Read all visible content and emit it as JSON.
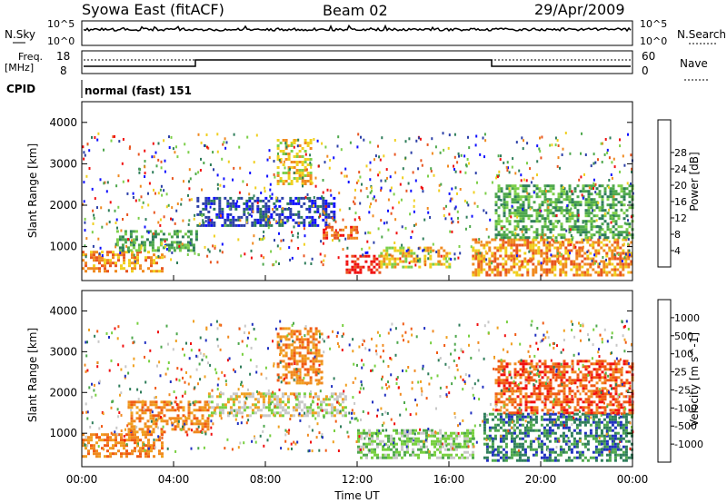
{
  "header": {
    "station": "Syowa East (fitACF)",
    "beam": "Beam 02",
    "date": "29/Apr/2009"
  },
  "noise_panel": {
    "left_label": "N.Sky",
    "right_label": "N.Search",
    "left_ticks": [
      "10^5",
      "10^0"
    ],
    "right_ticks": [
      "10^5",
      "10^0"
    ]
  },
  "freq_panel": {
    "left_label_1": "Freq.",
    "left_label_2": "[MHz]",
    "right_label": "Nave",
    "left_ticks": [
      "18",
      "8"
    ],
    "right_ticks": [
      "60",
      "0"
    ]
  },
  "cpid": {
    "label": "CPID",
    "value": "normal (fast) 151"
  },
  "x_axis": {
    "title": "Time UT",
    "ticks": [
      "00:00",
      "04:00",
      "08:00",
      "12:00",
      "16:00",
      "20:00",
      "00:00"
    ]
  },
  "colors": {
    "power": [
      "#1010ff",
      "#2c40a8",
      "#2e7d5a",
      "#4ea84c",
      "#7dcf4a",
      "#f0d020",
      "#f08a20",
      "#e85520",
      "#f01010"
    ],
    "velocity": [
      "#f01010",
      "#f05a14",
      "#f08a20",
      "#f0a020",
      "#c8c8c8",
      "#78d040",
      "#4ea84c",
      "#2e7d5a",
      "#2030c0"
    ]
  },
  "chart_data": [
    {
      "type": "heatmap",
      "name": "power",
      "ylabel": "Slant Range [km]",
      "xlabel": "Time UT",
      "xlim": [
        0,
        24
      ],
      "ylim": [
        180,
        4500
      ],
      "y_ticks": [
        1000,
        2000,
        3000,
        4000
      ],
      "colorbar_label": "Power [dB]",
      "colorbar_ticks": [
        "4",
        "8",
        "12",
        "16",
        "20",
        "24",
        "28"
      ],
      "regions": [
        {
          "t": [
            0.0,
            3.5
          ],
          "r": [
            400,
            900
          ],
          "level": 6
        },
        {
          "t": [
            1.5,
            5.0
          ],
          "r": [
            900,
            1400
          ],
          "level": 3
        },
        {
          "t": [
            5.0,
            11.0
          ],
          "r": [
            1500,
            2200
          ],
          "level": 1
        },
        {
          "t": [
            8.5,
            10.0
          ],
          "r": [
            2500,
            3600
          ],
          "level": 5
        },
        {
          "t": [
            10.5,
            12.0
          ],
          "r": [
            1200,
            1500
          ],
          "level": 7
        },
        {
          "t": [
            11.5,
            13.0
          ],
          "r": [
            400,
            800
          ],
          "level": 8
        },
        {
          "t": [
            13.0,
            16.0
          ],
          "r": [
            500,
            1000
          ],
          "level": 5
        },
        {
          "t": [
            17.0,
            24.0
          ],
          "r": [
            300,
            1200
          ],
          "level": 6
        },
        {
          "t": [
            18.0,
            24.0
          ],
          "r": [
            1200,
            2500
          ],
          "level": 3
        }
      ]
    },
    {
      "type": "heatmap",
      "name": "velocity",
      "ylabel": "Slant Range [km]",
      "xlabel": "Time UT",
      "xlim": [
        0,
        24
      ],
      "ylim": [
        180,
        4500
      ],
      "y_ticks": [
        1000,
        2000,
        3000,
        4000
      ],
      "colorbar_label": "Velocity [m s^-1]",
      "colorbar_ticks": [
        "1000",
        "500",
        "100",
        "25",
        "-25",
        "-100",
        "-500",
        "-1000"
      ],
      "regions": [
        {
          "t": [
            0.0,
            3.5
          ],
          "r": [
            400,
            1000
          ],
          "level": 2
        },
        {
          "t": [
            2.0,
            5.5
          ],
          "r": [
            1000,
            1800
          ],
          "level": 2
        },
        {
          "t": [
            5.5,
            11.5
          ],
          "r": [
            1400,
            2000
          ],
          "level": 4
        },
        {
          "t": [
            8.5,
            10.5
          ],
          "r": [
            2200,
            3600
          ],
          "level": 2
        },
        {
          "t": [
            12.0,
            17.0
          ],
          "r": [
            400,
            1100
          ],
          "level": 5
        },
        {
          "t": [
            17.5,
            24.0
          ],
          "r": [
            300,
            1500
          ],
          "level": 7
        },
        {
          "t": [
            18.0,
            24.0
          ],
          "r": [
            1500,
            2800
          ],
          "level": 1
        }
      ]
    }
  ]
}
